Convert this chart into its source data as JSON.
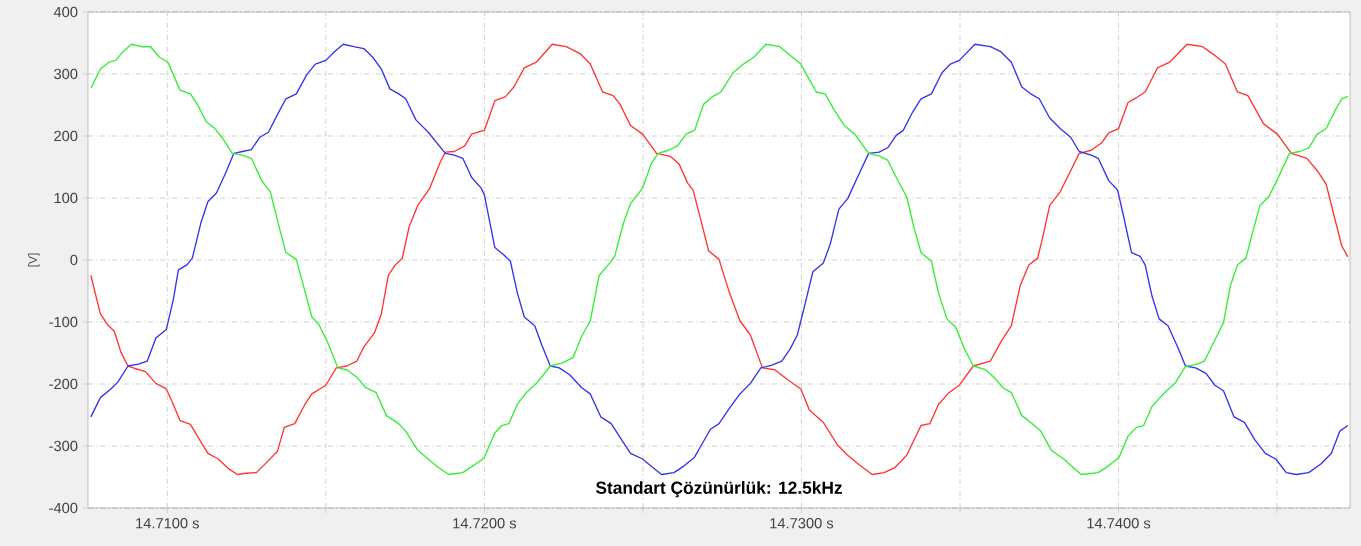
{
  "chart_data": {
    "type": "line",
    "ylabel": "[V]",
    "annotations": [
      "Standart Çözünürlük: 12.5kHz"
    ],
    "xlim": [
      14.7075,
      14.7473
    ],
    "ylim": [
      -400,
      400
    ],
    "xticks": [
      {
        "value": 14.71,
        "label": "14.7100 s"
      },
      {
        "value": 14.715,
        "label": null
      },
      {
        "value": 14.72,
        "label": "14.7200 s"
      },
      {
        "value": 14.725,
        "label": null
      },
      {
        "value": 14.73,
        "label": "14.7300 s"
      },
      {
        "value": 14.735,
        "label": null
      },
      {
        "value": 14.74,
        "label": "14.7400 s"
      },
      {
        "value": 14.745,
        "label": null
      }
    ],
    "yticks": [
      -400,
      -300,
      -200,
      -100,
      0,
      100,
      200,
      300,
      400
    ],
    "grid": true,
    "marker": "none",
    "line_style": "solid",
    "series": [
      {
        "color": "#ff3333",
        "x": [
          14.70759,
          14.70789,
          14.70811,
          14.70833,
          14.70854,
          14.70876,
          14.70898,
          14.70931,
          14.70964,
          14.70997,
          14.71019,
          14.7104,
          14.71073,
          14.71095,
          14.71128,
          14.71161,
          14.71194,
          14.71221,
          14.71248,
          14.71281,
          14.71314,
          14.71347,
          14.71369,
          14.71402,
          14.71434,
          14.71456,
          14.715,
          14.71533,
          14.71566,
          14.71598,
          14.7162,
          14.71653,
          14.71675,
          14.71697,
          14.71719,
          14.71741,
          14.71763,
          14.7179,
          14.71828,
          14.71861,
          14.71877,
          14.71905,
          14.71938,
          14.7196,
          14.7199,
          14.72,
          14.72033,
          14.72066,
          14.72093,
          14.72126,
          14.72164,
          14.72214,
          14.72258,
          14.72302,
          14.72334,
          14.72373,
          14.72406,
          14.72428,
          14.72461,
          14.72499,
          14.72543,
          14.72587,
          14.72614,
          14.72641,
          14.72658,
          14.72685,
          14.72707,
          14.7274,
          14.72773,
          14.72806,
          14.72839,
          14.72877,
          14.72916,
          14.72959,
          14.72998,
          14.73025,
          14.73069,
          14.73113,
          14.73146,
          14.73179,
          14.73223,
          14.73261,
          14.73294,
          14.73332,
          14.73377,
          14.73405,
          14.73432,
          14.73465,
          14.73498,
          14.73542,
          14.73596,
          14.73629,
          14.73662,
          14.7369,
          14.73717,
          14.73745,
          14.73761,
          14.73783,
          14.73816,
          14.73849,
          14.73876,
          14.73914,
          14.73947,
          14.73969,
          14.74,
          14.7403,
          14.74057,
          14.74084,
          14.74123,
          14.74161,
          14.74216,
          14.74265,
          14.74304,
          14.74337,
          14.74375,
          14.74408,
          14.74457,
          14.74501,
          14.74545,
          14.74594,
          14.74627,
          14.74655,
          14.74677,
          14.74704,
          14.74723
        ],
        "values": [
          -25,
          -87,
          -104,
          -115,
          -149,
          -171,
          -175,
          -180,
          -199,
          -208,
          -233,
          -259,
          -265,
          -284,
          -312,
          -321,
          -337,
          -346,
          -344,
          -343,
          -326,
          -309,
          -270,
          -264,
          -233,
          -216,
          -202,
          -174,
          -171,
          -163,
          -140,
          -118,
          -87,
          -25,
          -8,
          3,
          54,
          88,
          116,
          158,
          174,
          175,
          184,
          203,
          208,
          209,
          257,
          263,
          279,
          310,
          319,
          348,
          344,
          333,
          316,
          271,
          265,
          251,
          217,
          203,
          172,
          167,
          155,
          124,
          113,
          60,
          15,
          1,
          -53,
          -98,
          -121,
          -174,
          -177,
          -194,
          -208,
          -242,
          -262,
          -298,
          -315,
          -329,
          -346,
          -343,
          -335,
          -315,
          -267,
          -264,
          -233,
          -214,
          -202,
          -171,
          -163,
          -132,
          -106,
          -41,
          -8,
          3,
          37,
          88,
          110,
          144,
          172,
          177,
          189,
          205,
          212,
          254,
          262,
          271,
          310,
          319,
          348,
          344,
          330,
          316,
          271,
          265,
          220,
          203,
          172,
          164,
          144,
          122,
          77,
          23,
          5
        ]
      },
      {
        "color": "#3333ee",
        "x": [
          14.70759,
          14.70789,
          14.70822,
          14.70844,
          14.70876,
          14.70909,
          14.70937,
          14.70964,
          14.70997,
          14.71019,
          14.71035,
          14.71062,
          14.71079,
          14.71106,
          14.71128,
          14.71155,
          14.71183,
          14.7121,
          14.71237,
          14.71265,
          14.71292,
          14.71319,
          14.71347,
          14.71374,
          14.71407,
          14.7144,
          14.71467,
          14.715,
          14.71527,
          14.71555,
          14.71588,
          14.7162,
          14.71648,
          14.71675,
          14.71702,
          14.7173,
          14.71752,
          14.71784,
          14.71823,
          14.7185,
          14.71877,
          14.71905,
          14.71932,
          14.7196,
          14.7199,
          14.72,
          14.72033,
          14.7206,
          14.72082,
          14.72104,
          14.72126,
          14.72159,
          14.72181,
          14.72208,
          14.72236,
          14.72269,
          14.72307,
          14.72334,
          14.72367,
          14.724,
          14.72433,
          14.72461,
          14.72499,
          14.72532,
          14.72559,
          14.72598,
          14.7263,
          14.72663,
          14.72685,
          14.72713,
          14.7274,
          14.72773,
          14.72806,
          14.72839,
          14.72872,
          14.72905,
          14.72938,
          14.72965,
          14.72987,
          14.73009,
          14.73036,
          14.73069,
          14.73091,
          14.73118,
          14.73146,
          14.73179,
          14.73212,
          14.73245,
          14.73272,
          14.73299,
          14.73321,
          14.73349,
          14.73377,
          14.7341,
          14.73443,
          14.7347,
          14.73498,
          14.73547,
          14.73596,
          14.73629,
          14.73662,
          14.73695,
          14.73723,
          14.7375,
          14.73783,
          14.73816,
          14.73849,
          14.73876,
          14.73914,
          14.73936,
          14.73969,
          14.73997,
          14.74013,
          14.74041,
          14.74068,
          14.74084,
          14.74106,
          14.74128,
          14.74156,
          14.74189,
          14.74211,
          14.74243,
          14.74276,
          14.74304,
          14.74331,
          14.74364,
          14.74397,
          14.7443,
          14.74463,
          14.74496,
          14.74529,
          14.74561,
          14.746,
          14.74638,
          14.74671,
          14.74698,
          14.74723
        ],
        "values": [
          -253,
          -222,
          -208,
          -197,
          -171,
          -168,
          -163,
          -126,
          -112,
          -64,
          -16,
          -8,
          3,
          60,
          94,
          108,
          139,
          172,
          175,
          178,
          198,
          206,
          234,
          260,
          268,
          299,
          316,
          322,
          336,
          348,
          344,
          341,
          327,
          308,
          276,
          268,
          260,
          226,
          206,
          189,
          172,
          169,
          164,
          133,
          116,
          105,
          20,
          9,
          -2,
          -53,
          -92,
          -106,
          -137,
          -171,
          -174,
          -185,
          -206,
          -216,
          -253,
          -264,
          -290,
          -312,
          -321,
          -335,
          -346,
          -343,
          -332,
          -318,
          -298,
          -273,
          -264,
          -239,
          -216,
          -199,
          -174,
          -170,
          -163,
          -143,
          -121,
          -76,
          -19,
          -5,
          26,
          82,
          99,
          136,
          172,
          174,
          181,
          201,
          209,
          237,
          260,
          268,
          302,
          316,
          322,
          348,
          344,
          336,
          319,
          279,
          268,
          260,
          229,
          212,
          198,
          175,
          169,
          164,
          128,
          113,
          77,
          12,
          6,
          -8,
          -59,
          -95,
          -106,
          -143,
          -171,
          -174,
          -183,
          -202,
          -211,
          -253,
          -262,
          -290,
          -312,
          -321,
          -343,
          -346,
          -343,
          -329,
          -312,
          -276,
          -267
        ]
      },
      {
        "color": "#33ee33",
        "x": [
          14.70759,
          14.70789,
          14.70816,
          14.70838,
          14.7086,
          14.70887,
          14.7092,
          14.70947,
          14.70975,
          14.71002,
          14.71019,
          14.7104,
          14.71073,
          14.71095,
          14.71123,
          14.7115,
          14.71172,
          14.71205,
          14.71237,
          14.71265,
          14.71298,
          14.71325,
          14.71347,
          14.71374,
          14.71407,
          14.71429,
          14.71456,
          14.71478,
          14.71505,
          14.71538,
          14.71566,
          14.71598,
          14.71626,
          14.71659,
          14.71691,
          14.7173,
          14.71752,
          14.7179,
          14.71823,
          14.71856,
          14.71888,
          14.71932,
          14.7199,
          14.72,
          14.72033,
          14.72055,
          14.72077,
          14.72104,
          14.72132,
          14.72164,
          14.72208,
          14.72247,
          14.7228,
          14.72307,
          14.72334,
          14.72362,
          14.72395,
          14.72411,
          14.72439,
          14.72461,
          14.72499,
          14.72526,
          14.72548,
          14.72581,
          14.72609,
          14.72636,
          14.72663,
          14.72691,
          14.72718,
          14.72746,
          14.72784,
          14.72817,
          14.7285,
          14.72888,
          14.72932,
          14.72965,
          14.72998,
          14.73025,
          14.73047,
          14.73075,
          14.73102,
          14.73135,
          14.73168,
          14.73212,
          14.73245,
          14.73272,
          14.73299,
          14.73332,
          14.73354,
          14.73377,
          14.7341,
          14.73432,
          14.73459,
          14.73487,
          14.73514,
          14.73542,
          14.7358,
          14.73607,
          14.73635,
          14.73662,
          14.73695,
          14.73728,
          14.73755,
          14.73788,
          14.73827,
          14.73882,
          14.73936,
          14.73969,
          14.74002,
          14.7403,
          14.74057,
          14.74079,
          14.74106,
          14.74145,
          14.74178,
          14.74211,
          14.74249,
          14.74271,
          14.74304,
          14.74331,
          14.74353,
          14.74375,
          14.74402,
          14.74419,
          14.74446,
          14.74474,
          14.74501,
          14.74539,
          14.74572,
          14.746,
          14.74627,
          14.74655,
          14.74682,
          14.74704,
          14.74723
        ],
        "values": [
          277,
          308,
          319,
          322,
          336,
          348,
          344,
          344,
          327,
          319,
          299,
          274,
          268,
          251,
          223,
          212,
          198,
          172,
          169,
          164,
          128,
          110,
          65,
          12,
          1,
          -41,
          -92,
          -104,
          -132,
          -174,
          -177,
          -189,
          -206,
          -214,
          -251,
          -264,
          -276,
          -307,
          -321,
          -335,
          -346,
          -343,
          -323,
          -318,
          -279,
          -267,
          -264,
          -233,
          -214,
          -199,
          -171,
          -166,
          -157,
          -123,
          -98,
          -25,
          -5,
          6,
          60,
          91,
          116,
          155,
          172,
          177,
          184,
          203,
          209,
          251,
          263,
          271,
          302,
          316,
          327,
          348,
          344,
          330,
          316,
          291,
          271,
          268,
          243,
          217,
          203,
          172,
          168,
          161,
          133,
          102,
          54,
          12,
          -2,
          -53,
          -95,
          -109,
          -143,
          -171,
          -177,
          -189,
          -206,
          -214,
          -251,
          -264,
          -276,
          -307,
          -321,
          -346,
          -343,
          -332,
          -318,
          -284,
          -270,
          -267,
          -236,
          -214,
          -199,
          -172,
          -168,
          -163,
          -129,
          -101,
          -41,
          -8,
          3,
          37,
          88,
          102,
          130,
          172,
          175,
          181,
          203,
          212,
          240,
          260,
          264
        ]
      }
    ]
  }
}
